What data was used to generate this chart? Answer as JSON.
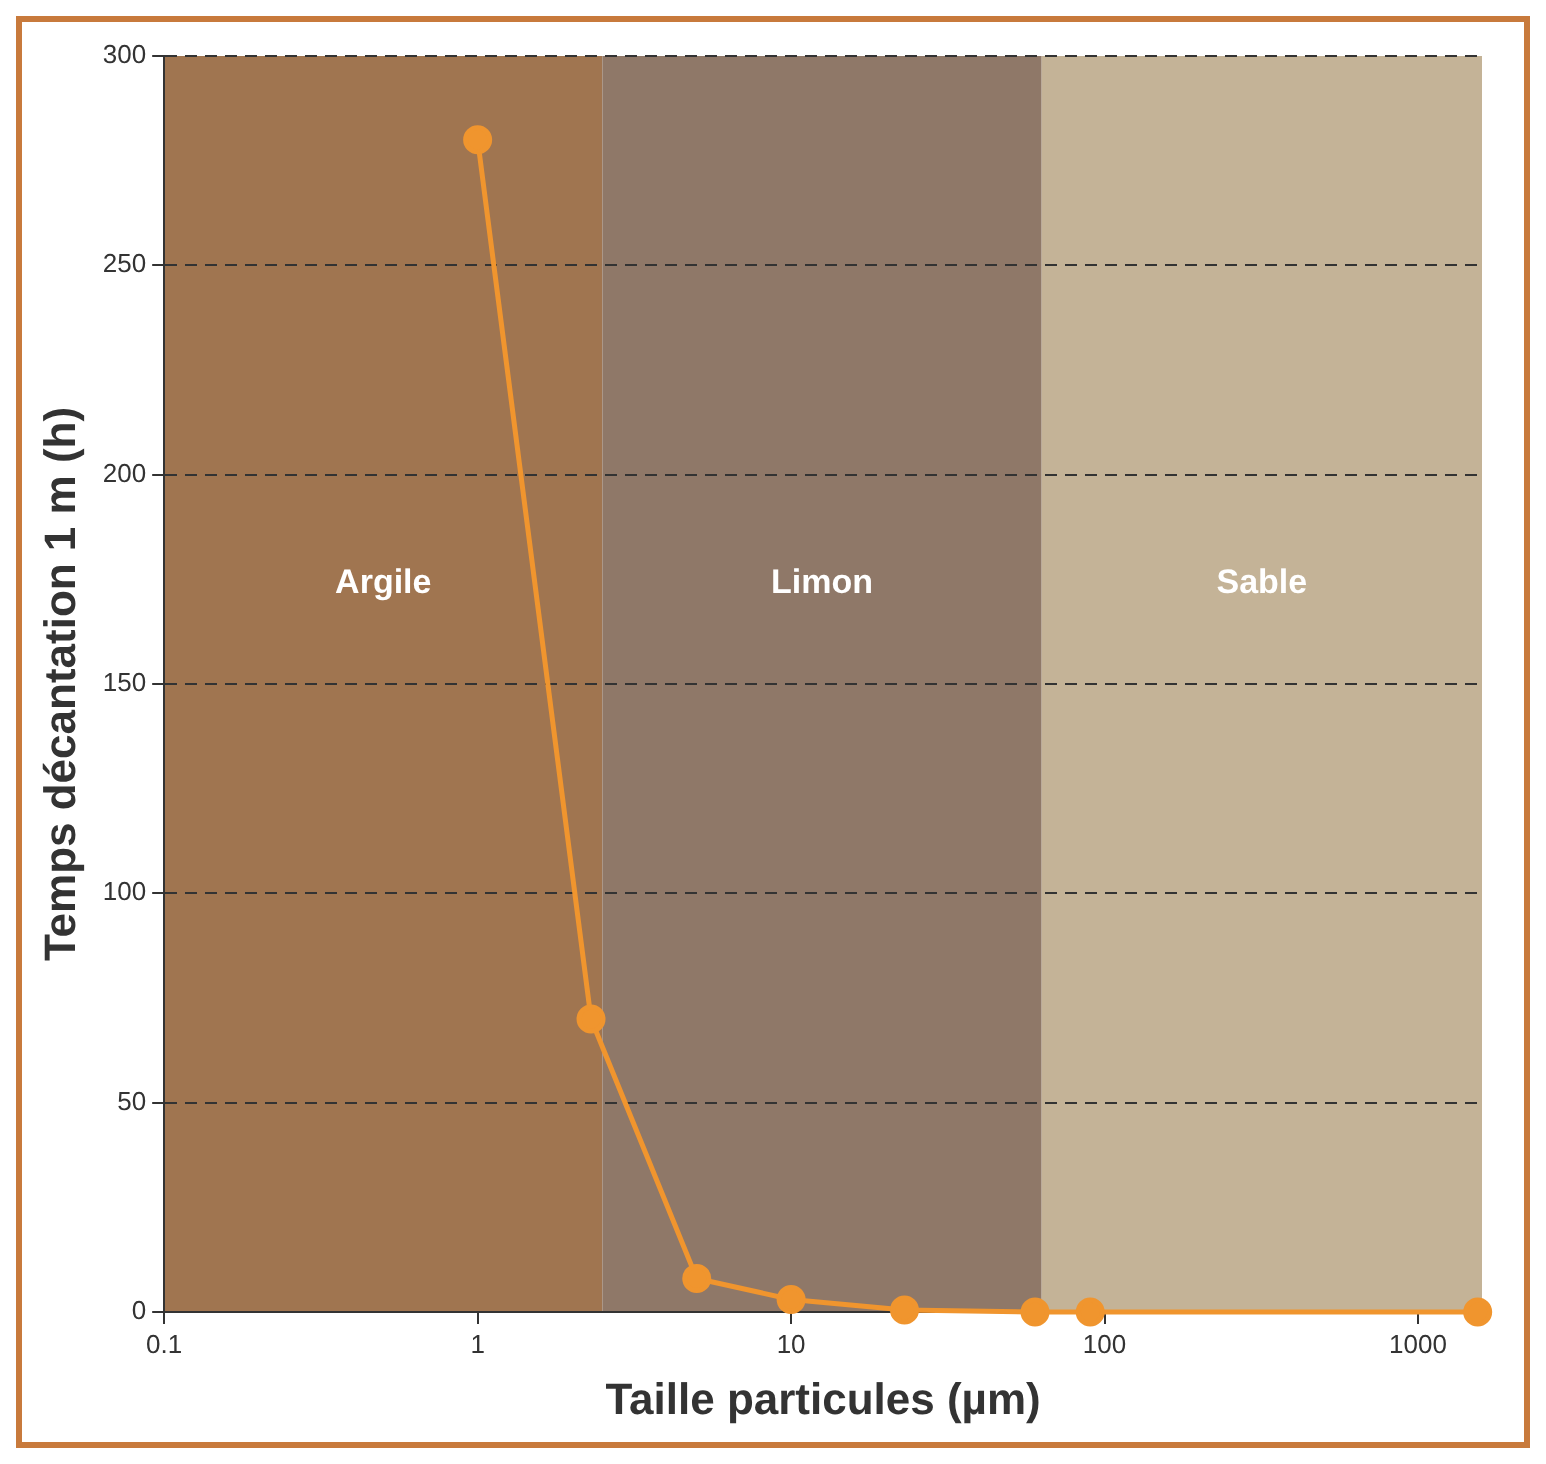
{
  "chart_data": {
    "type": "line",
    "xlabel": "Taille particules (µm)",
    "ylabel": "Temps décantation 1 m (h)",
    "x": [
      1,
      2.3,
      5,
      10,
      23,
      60,
      90,
      1550
    ],
    "series": [
      {
        "color": "#f0952e",
        "values": [
          280,
          70,
          8,
          3,
          0.5,
          0,
          0,
          0
        ]
      }
    ],
    "log": "x",
    "xlim": [
      0.1,
      1600
    ],
    "xticks": [
      0.1,
      1,
      10,
      100,
      1000
    ],
    "ylim": [
      0,
      300
    ],
    "yticks": [
      0,
      50,
      100,
      150,
      200,
      250,
      300
    ],
    "grid": "y",
    "marker": "circle",
    "line_style": "solid",
    "legend": false,
    "bands": [
      {
        "axis": "x",
        "from": 0.1,
        "to": 2.5,
        "label": "Argile",
        "color": "#a07550"
      },
      {
        "axis": "x",
        "from": 2.5,
        "to": 63,
        "label": "Limon",
        "color": "#8f7868"
      },
      {
        "axis": "x",
        "from": 63,
        "to": 1600,
        "label": "Sable",
        "color": "#c4b397"
      }
    ]
  }
}
